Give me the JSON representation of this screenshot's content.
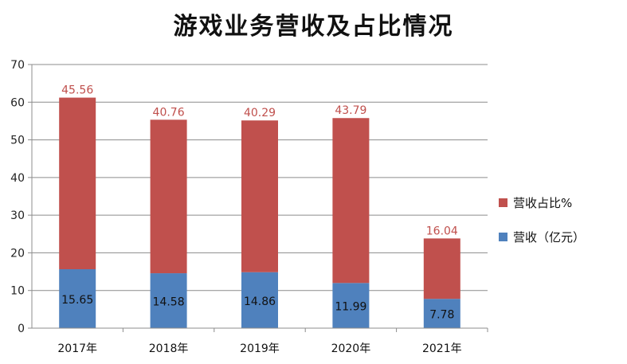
{
  "chart_data": {
    "type": "bar",
    "stacked": true,
    "title": "游戏业务营收及占比情况",
    "categories": [
      "2017年",
      "2018年",
      "2019年",
      "2020年",
      "2021年"
    ],
    "series": [
      {
        "name": "营收（亿元）",
        "color": "#4f81bd",
        "values": [
          15.65,
          14.58,
          14.86,
          11.99,
          7.78
        ]
      },
      {
        "name": "营收占比%",
        "color": "#c0504d",
        "values": [
          45.56,
          40.76,
          40.29,
          43.79,
          16.04
        ]
      }
    ],
    "ylim": [
      0,
      70
    ],
    "yticks": [
      0,
      10,
      20,
      30,
      40,
      50,
      60,
      70
    ],
    "grid": true,
    "legend_position": "right"
  }
}
